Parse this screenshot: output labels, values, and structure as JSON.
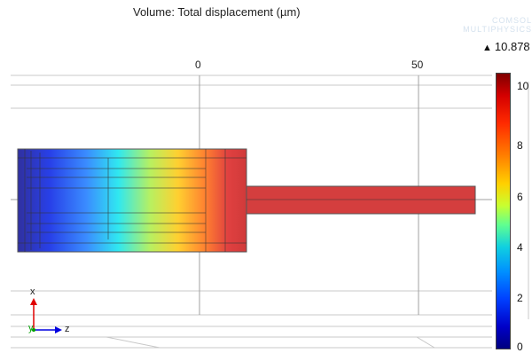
{
  "title": "Volume: Total displacement (µm)",
  "watermark": {
    "line1": "COMSOL",
    "line2": "MULTIPHYSICS"
  },
  "max_value": "10.878",
  "max_marker_icon": "up-triangle-icon",
  "axis_ticks": {
    "x0": "0",
    "x50": "50"
  },
  "colorbar": {
    "labels": [
      "10",
      "8",
      "6",
      "4",
      "2",
      "0"
    ],
    "min": 0,
    "max": 10.878
  },
  "triad": {
    "x_label": "x",
    "y_label": "y",
    "z_label": "z",
    "x_color": "#e00000",
    "y_color": "#00a000",
    "z_color": "#0000e0"
  }
}
